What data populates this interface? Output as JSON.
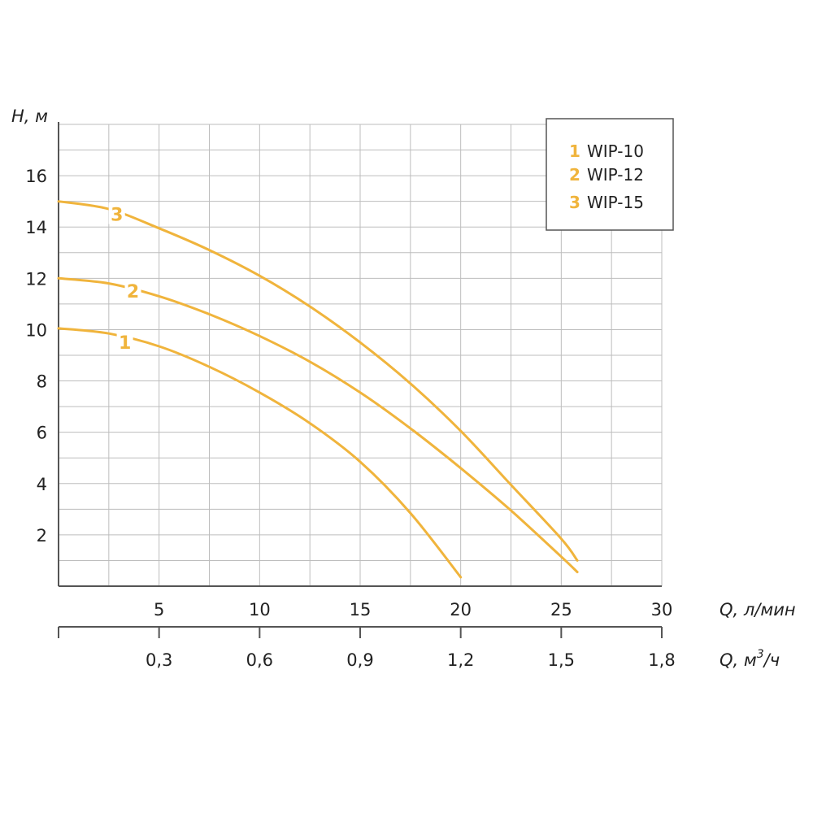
{
  "chart_data": {
    "type": "line",
    "colors": {
      "series": "#f0b43c",
      "grid": "#bdbdbd",
      "axis": "#555555"
    },
    "y_axis": {
      "label": "H, м",
      "range": [
        0,
        18
      ],
      "ticks": [
        2,
        4,
        6,
        8,
        10,
        12,
        14,
        16
      ],
      "tick_labels": [
        "2",
        "4",
        "6",
        "8",
        "10",
        "12",
        "14",
        "16"
      ],
      "grid_step": 1
    },
    "x_axis": {
      "label": "Q, л/мин",
      "range": [
        0,
        30
      ],
      "ticks": [
        5,
        10,
        15,
        20,
        25,
        30
      ],
      "tick_labels": [
        "5",
        "10",
        "15",
        "20",
        "25",
        "30"
      ],
      "grid_step": 2.5
    },
    "x_axis_secondary": {
      "label_main": "Q, м",
      "label_sup": "3",
      "label_tail": "/ч",
      "range": [
        0,
        1.8
      ],
      "ticks": [
        0.3,
        0.6,
        0.9,
        1.2,
        1.5,
        1.8
      ],
      "tick_labels": [
        "0,3",
        "0,6",
        "0,9",
        "1,2",
        "1,5",
        "1,8"
      ]
    },
    "grid": true,
    "legend": {
      "position": "top-right",
      "entries": [
        {
          "number": "1",
          "name": "WIP-10"
        },
        {
          "number": "2",
          "name": "WIP-12"
        },
        {
          "number": "3",
          "name": "WIP-15"
        }
      ]
    },
    "series": [
      {
        "number": "1",
        "name": "WIP-10",
        "label_at": [
          3.3,
          9.5
        ],
        "x": [
          0,
          2.5,
          5,
          7.5,
          10,
          12.5,
          15,
          17.5,
          20
        ],
        "y": [
          10.05,
          9.85,
          9.35,
          8.55,
          7.55,
          6.35,
          4.85,
          2.85,
          0.35
        ]
      },
      {
        "number": "2",
        "name": "WIP-12",
        "label_at": [
          3.7,
          11.5
        ],
        "x": [
          0,
          2.5,
          5,
          7.5,
          10,
          12.5,
          15,
          17.5,
          20,
          22.5,
          25,
          25.8
        ],
        "y": [
          12.0,
          11.8,
          11.3,
          10.6,
          9.75,
          8.75,
          7.55,
          6.15,
          4.6,
          2.95,
          1.15,
          0.55
        ]
      },
      {
        "number": "3",
        "name": "WIP-15",
        "label_at": [
          2.9,
          14.5
        ],
        "x": [
          0,
          2.5,
          5,
          7.5,
          10,
          12.5,
          15,
          17.5,
          20,
          22.5,
          25,
          25.8
        ],
        "y": [
          15.0,
          14.7,
          13.95,
          13.1,
          12.1,
          10.9,
          9.5,
          7.9,
          6.05,
          3.95,
          1.85,
          1.0
        ]
      }
    ]
  }
}
